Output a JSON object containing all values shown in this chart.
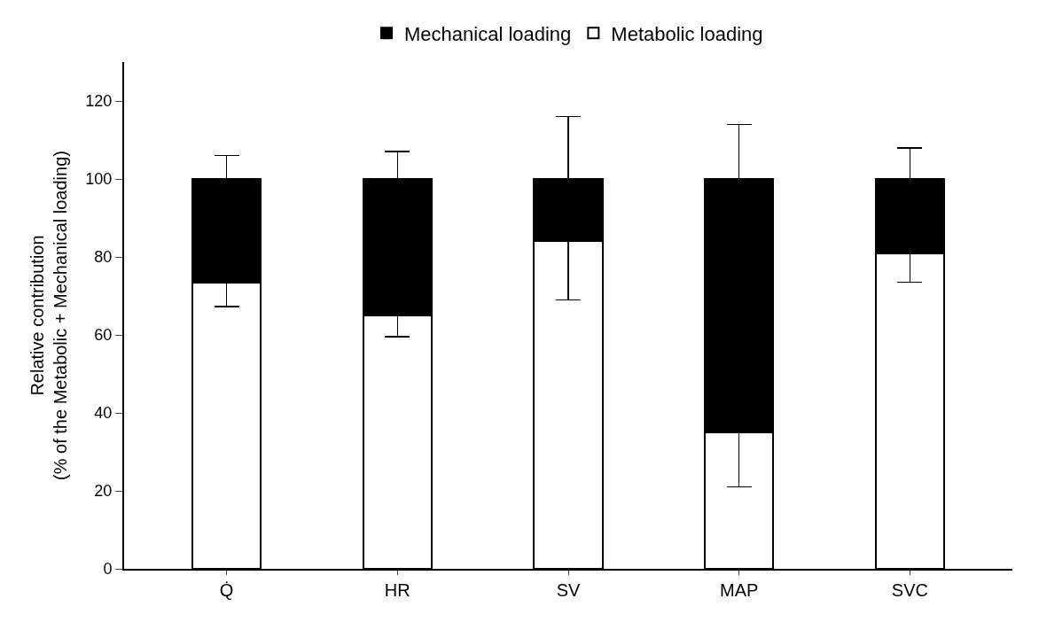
{
  "chart_data": {
    "type": "bar",
    "stacked": true,
    "ylabel": "Relative contribution\n(% of the Metabolic + Mechanical loading)",
    "categories": [
      "Q̇",
      "HR",
      "SV",
      "MAP",
      "SVC"
    ],
    "series": [
      {
        "name": "Metabolic loading",
        "color": "#ffffff",
        "values": [
          73.3,
          65,
          84,
          35,
          81
        ],
        "errors": [
          [
            67.3,
            73.3
          ],
          [
            59.5,
            65
          ],
          [
            69,
            84
          ],
          [
            21,
            35
          ],
          [
            73.5,
            81
          ]
        ]
      },
      {
        "name": "Mechanical loading",
        "color": "#000000",
        "values": [
          26.7,
          35,
          16,
          65,
          19
        ],
        "errors": [
          [
            100,
            106
          ],
          [
            100,
            107
          ],
          [
            100,
            116
          ],
          [
            100,
            114
          ],
          [
            100,
            108
          ]
        ]
      }
    ],
    "ylim": [
      0,
      130
    ],
    "yticks": [
      0,
      20,
      40,
      60,
      80,
      100,
      120
    ],
    "legend": "top"
  }
}
